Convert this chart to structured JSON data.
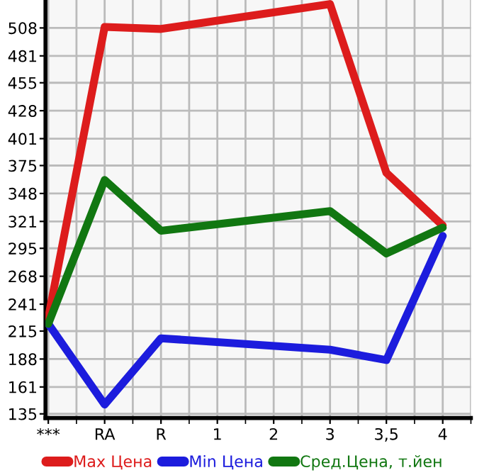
{
  "chart_data": {
    "type": "line",
    "categories": [
      "***",
      "RA",
      "R",
      "1",
      "2",
      "3",
      "3,5",
      "4"
    ],
    "series": [
      {
        "name": "Max Цена",
        "color": "#dd1c1c",
        "values": [
          228,
          509,
          507,
          null,
          null,
          531,
          368,
          317
        ]
      },
      {
        "name": "Min Цена",
        "color": "#1c1cdd",
        "values": [
          222,
          144,
          208,
          null,
          null,
          197,
          187,
          307
        ]
      },
      {
        "name": "Сред.Цена, т.йен",
        "color": "#117711",
        "values": [
          222,
          361,
          312,
          null,
          null,
          331,
          290,
          315
        ]
      }
    ],
    "ylim": [
      131,
      535
    ],
    "yticks": [
      135,
      161,
      188,
      215,
      241,
      268,
      295,
      321,
      348,
      375,
      401,
      428,
      455,
      481,
      508
    ],
    "grid": true,
    "legend": "bottom",
    "marker": "none",
    "line_style": "solid"
  }
}
